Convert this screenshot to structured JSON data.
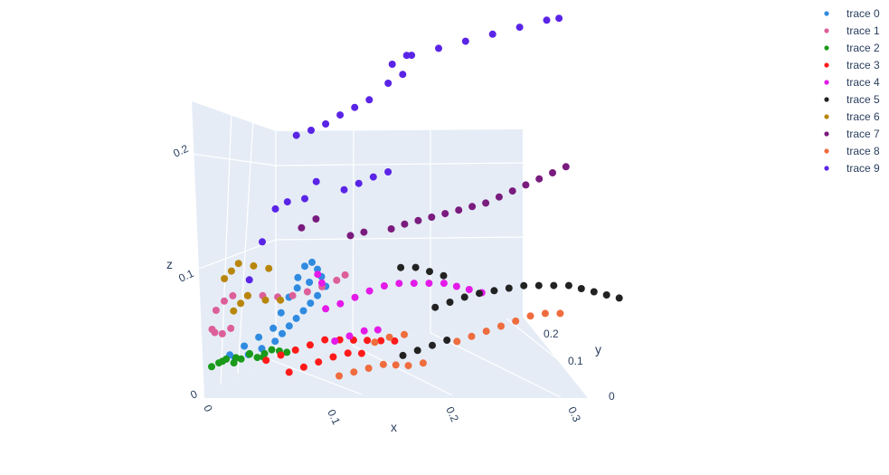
{
  "chart_data": {
    "type": "scatter3d",
    "axes": {
      "x": {
        "label": "x",
        "range": [
          0,
          0.3
        ],
        "ticks": [
          "0",
          "0.1",
          "0.2",
          "0.3"
        ]
      },
      "y": {
        "label": "y",
        "range": [
          0,
          0.2
        ],
        "ticks": [
          "0",
          "0.1",
          "0.2"
        ]
      },
      "z": {
        "label": "z",
        "range": [
          0,
          0.22
        ],
        "ticks": [
          "0",
          "0.1",
          "0.2"
        ]
      }
    },
    "grid": true,
    "legend_position": "top-right",
    "series": [
      {
        "name": "trace 0",
        "color": "#1f77b4",
        "display_color": "#2f8be0",
        "points": [
          [
            0.005,
            0.06,
            0.005
          ],
          [
            0.015,
            0.07,
            0.01
          ],
          [
            0.025,
            0.08,
            0.015
          ],
          [
            0.035,
            0.09,
            0.02
          ],
          [
            0.04,
            0.1,
            0.03
          ],
          [
            0.045,
            0.11,
            0.04
          ],
          [
            0.05,
            0.12,
            0.045
          ],
          [
            0.06,
            0.12,
            0.05
          ],
          [
            0.07,
            0.12,
            0.055
          ],
          [
            0.075,
            0.11,
            0.05
          ],
          [
            0.07,
            0.1,
            0.045
          ],
          [
            0.065,
            0.095,
            0.04
          ],
          [
            0.06,
            0.09,
            0.035
          ],
          [
            0.055,
            0.085,
            0.03
          ],
          [
            0.05,
            0.08,
            0.025
          ],
          [
            0.045,
            0.075,
            0.02
          ],
          [
            0.04,
            0.07,
            0.015
          ],
          [
            0.03,
            0.065,
            0.01
          ],
          [
            0.02,
            0.06,
            0.006
          ],
          [
            0.01,
            0.055,
            0.004
          ],
          [
            0.055,
            0.13,
            0.06
          ],
          [
            0.06,
            0.135,
            0.062
          ],
          [
            0.065,
            0.13,
            0.058
          ],
          [
            0.05,
            0.125,
            0.052
          ]
        ]
      },
      {
        "name": "trace 1",
        "color": "#e377c2",
        "display_color": "#dc5f9a",
        "points": [
          [
            0.0,
            0.04,
            0.045
          ],
          [
            0.005,
            0.05,
            0.05
          ],
          [
            0.01,
            0.06,
            0.052
          ],
          [
            0.02,
            0.07,
            0.05
          ],
          [
            0.03,
            0.08,
            0.048
          ],
          [
            0.04,
            0.09,
            0.045
          ],
          [
            0.05,
            0.1,
            0.044
          ],
          [
            0.06,
            0.11,
            0.045
          ],
          [
            0.07,
            0.12,
            0.047
          ],
          [
            0.08,
            0.13,
            0.05
          ],
          [
            0.085,
            0.14,
            0.052
          ],
          [
            0.0,
            0.02,
            0.035
          ],
          [
            0.0,
            0.03,
            0.03
          ],
          [
            0.005,
            0.035,
            0.028
          ],
          [
            0.01,
            0.045,
            0.03
          ]
        ]
      },
      {
        "name": "trace 2",
        "color": "#2ca02c",
        "display_color": "#1a9a1a",
        "points": [
          [
            0.0,
            0.01,
            0.008
          ],
          [
            0.005,
            0.015,
            0.01
          ],
          [
            0.01,
            0.02,
            0.012
          ],
          [
            0.015,
            0.025,
            0.008
          ],
          [
            0.02,
            0.03,
            0.01
          ],
          [
            0.025,
            0.04,
            0.012
          ],
          [
            0.03,
            0.045,
            0.008
          ],
          [
            0.035,
            0.05,
            0.01
          ],
          [
            0.04,
            0.055,
            0.012
          ],
          [
            0.045,
            0.06,
            0.01
          ],
          [
            0.05,
            0.065,
            0.008
          ],
          [
            0.01,
            0.005,
            0.014
          ],
          [
            0.02,
            0.01,
            0.016
          ],
          [
            0.03,
            0.015,
            0.018
          ],
          [
            0.04,
            0.02,
            0.015
          ]
        ]
      },
      {
        "name": "trace 3",
        "color": "#d62728",
        "display_color": "#ff1a1a",
        "points": [
          [
            0.04,
            0.03,
            0.01
          ],
          [
            0.05,
            0.04,
            0.012
          ],
          [
            0.06,
            0.05,
            0.014
          ],
          [
            0.07,
            0.06,
            0.016
          ],
          [
            0.08,
            0.07,
            0.018
          ],
          [
            0.09,
            0.08,
            0.016
          ],
          [
            0.1,
            0.085,
            0.015
          ],
          [
            0.11,
            0.09,
            0.014
          ],
          [
            0.12,
            0.095,
            0.013
          ],
          [
            0.13,
            0.1,
            0.012
          ],
          [
            0.06,
            0.02,
            0.004
          ],
          [
            0.07,
            0.03,
            0.006
          ],
          [
            0.08,
            0.04,
            0.008
          ],
          [
            0.09,
            0.05,
            0.01
          ],
          [
            0.1,
            0.06,
            0.011
          ],
          [
            0.11,
            0.065,
            0.01
          ]
        ]
      },
      {
        "name": "trace 4",
        "color": "#9467bd",
        "display_color": "#e31ae8",
        "points": [
          [
            0.08,
            0.08,
            0.04
          ],
          [
            0.09,
            0.09,
            0.042
          ],
          [
            0.1,
            0.1,
            0.045
          ],
          [
            0.11,
            0.11,
            0.048
          ],
          [
            0.12,
            0.12,
            0.05
          ],
          [
            0.13,
            0.13,
            0.05
          ],
          [
            0.14,
            0.14,
            0.048
          ],
          [
            0.15,
            0.15,
            0.046
          ],
          [
            0.16,
            0.16,
            0.044
          ],
          [
            0.17,
            0.16,
            0.042
          ],
          [
            0.18,
            0.16,
            0.04
          ],
          [
            0.19,
            0.16,
            0.038
          ],
          [
            0.09,
            0.06,
            0.02
          ],
          [
            0.1,
            0.07,
            0.022
          ],
          [
            0.11,
            0.08,
            0.024
          ],
          [
            0.12,
            0.085,
            0.024
          ],
          [
            0.07,
            0.12,
            0.05
          ],
          [
            0.065,
            0.13,
            0.054
          ]
        ]
      },
      {
        "name": "trace 5",
        "color": "#111111",
        "display_color": "#222222",
        "points": [
          [
            0.16,
            0.12,
            0.035
          ],
          [
            0.17,
            0.13,
            0.037
          ],
          [
            0.18,
            0.14,
            0.039
          ],
          [
            0.19,
            0.15,
            0.04
          ],
          [
            0.2,
            0.16,
            0.04
          ],
          [
            0.21,
            0.17,
            0.04
          ],
          [
            0.22,
            0.18,
            0.04
          ],
          [
            0.23,
            0.19,
            0.038
          ],
          [
            0.24,
            0.2,
            0.036
          ],
          [
            0.25,
            0.21,
            0.034
          ],
          [
            0.26,
            0.21,
            0.032
          ],
          [
            0.27,
            0.21,
            0.03
          ],
          [
            0.28,
            0.21,
            0.028
          ],
          [
            0.29,
            0.21,
            0.026
          ],
          [
            0.14,
            0.08,
            0.006
          ],
          [
            0.15,
            0.09,
            0.008
          ],
          [
            0.16,
            0.1,
            0.01
          ],
          [
            0.17,
            0.11,
            0.012
          ],
          [
            0.13,
            0.14,
            0.06
          ],
          [
            0.14,
            0.15,
            0.058
          ],
          [
            0.15,
            0.155,
            0.054
          ],
          [
            0.16,
            0.16,
            0.05
          ]
        ]
      },
      {
        "name": "trace 6",
        "color": "#b8860b",
        "display_color": "#b8860b",
        "points": [
          [
            0.0,
            0.08,
            0.06
          ],
          [
            0.005,
            0.085,
            0.065
          ],
          [
            0.01,
            0.09,
            0.07
          ],
          [
            0.02,
            0.1,
            0.066
          ],
          [
            0.03,
            0.11,
            0.062
          ],
          [
            0.01,
            0.06,
            0.04
          ],
          [
            0.015,
            0.065,
            0.045
          ],
          [
            0.02,
            0.07,
            0.05
          ],
          [
            0.03,
            0.09,
            0.042
          ],
          [
            0.04,
            0.1,
            0.04
          ]
        ]
      },
      {
        "name": "trace 7",
        "color": "#6a1b6e",
        "display_color": "#7a1b7e",
        "points": [
          [
            0.12,
            0.16,
            0.085
          ],
          [
            0.13,
            0.165,
            0.088
          ],
          [
            0.14,
            0.17,
            0.09
          ],
          [
            0.15,
            0.175,
            0.092
          ],
          [
            0.16,
            0.18,
            0.094
          ],
          [
            0.17,
            0.185,
            0.096
          ],
          [
            0.18,
            0.19,
            0.098
          ],
          [
            0.19,
            0.195,
            0.1
          ],
          [
            0.2,
            0.2,
            0.104
          ],
          [
            0.21,
            0.205,
            0.108
          ],
          [
            0.22,
            0.21,
            0.112
          ],
          [
            0.23,
            0.215,
            0.116
          ],
          [
            0.24,
            0.22,
            0.12
          ],
          [
            0.25,
            0.225,
            0.124
          ],
          [
            0.1,
            0.15,
            0.084
          ],
          [
            0.09,
            0.145,
            0.082
          ],
          [
            0.05,
            0.15,
            0.085
          ],
          [
            0.06,
            0.16,
            0.09
          ]
        ]
      },
      {
        "name": "trace 8",
        "color": "#ef6c3e",
        "display_color": "#ef6c3e",
        "points": [
          [
            0.1,
            0.02,
            0.003
          ],
          [
            0.11,
            0.03,
            0.004
          ],
          [
            0.12,
            0.04,
            0.005
          ],
          [
            0.13,
            0.05,
            0.006
          ],
          [
            0.14,
            0.05,
            0.006
          ],
          [
            0.15,
            0.05,
            0.006
          ],
          [
            0.16,
            0.06,
            0.006
          ],
          [
            0.18,
            0.1,
            0.014
          ],
          [
            0.19,
            0.11,
            0.016
          ],
          [
            0.2,
            0.12,
            0.018
          ],
          [
            0.21,
            0.13,
            0.02
          ],
          [
            0.22,
            0.14,
            0.022
          ],
          [
            0.23,
            0.15,
            0.024
          ],
          [
            0.24,
            0.16,
            0.024
          ],
          [
            0.25,
            0.17,
            0.022
          ],
          [
            0.12,
            0.07,
            0.018
          ],
          [
            0.13,
            0.08,
            0.02
          ],
          [
            0.14,
            0.09,
            0.02
          ]
        ]
      },
      {
        "name": "trace 9",
        "color": "#4b1fd6",
        "display_color": "#5a24e6",
        "points": [
          [
            0.14,
            0.18,
            0.218
          ],
          [
            0.16,
            0.19,
            0.222
          ],
          [
            0.18,
            0.2,
            0.226
          ],
          [
            0.2,
            0.21,
            0.23
          ],
          [
            0.22,
            0.22,
            0.234
          ],
          [
            0.24,
            0.23,
            0.238
          ],
          [
            0.25,
            0.23,
            0.24
          ],
          [
            0.12,
            0.2,
            0.205
          ],
          [
            0.13,
            0.21,
            0.21
          ],
          [
            0.13,
            0.19,
            0.2
          ],
          [
            0.12,
            0.18,
            0.195
          ],
          [
            0.1,
            0.2,
            0.176
          ],
          [
            0.09,
            0.19,
            0.172
          ],
          [
            0.08,
            0.18,
            0.168
          ],
          [
            0.07,
            0.17,
            0.163
          ],
          [
            0.06,
            0.16,
            0.16
          ],
          [
            0.05,
            0.15,
            0.158
          ],
          [
            0.1,
            0.14,
            0.125
          ],
          [
            0.11,
            0.15,
            0.128
          ],
          [
            0.12,
            0.16,
            0.13
          ],
          [
            0.09,
            0.13,
            0.122
          ],
          [
            0.06,
            0.12,
            0.116
          ],
          [
            0.04,
            0.1,
            0.112
          ],
          [
            0.02,
            0.08,
            0.06
          ],
          [
            0.03,
            0.09,
            0.088
          ],
          [
            0.05,
            0.1,
            0.118
          ],
          [
            0.07,
            0.12,
            0.13
          ]
        ]
      }
    ]
  }
}
